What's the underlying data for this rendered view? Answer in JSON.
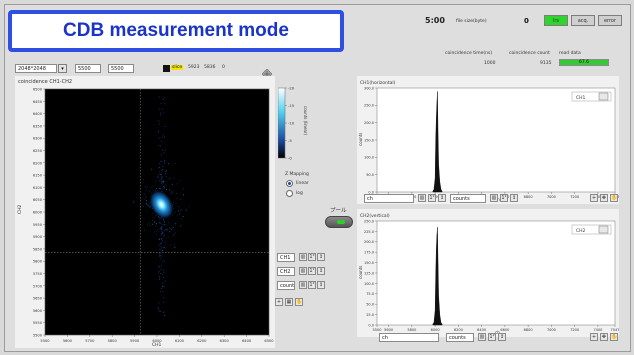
{
  "banner": {
    "title": "CDB measurement mode"
  },
  "top_status": {
    "timer": "5:00",
    "file_size_label": "file size(byte)",
    "file_size_value": "0",
    "indicators": [
      {
        "label": "lrs",
        "color": "#2ed32e"
      },
      {
        "label": "acq.",
        "color": "#cfcfcf"
      },
      {
        "label": "error",
        "color": "#cfcfcf"
      }
    ]
  },
  "settings": {
    "resolution": "2048*2048",
    "range_from": "5500",
    "range_to": "5500",
    "slice_label": "slice",
    "slice_from": "5923",
    "slice_to": "5836",
    "slice_extra": "0"
  },
  "counters": {
    "coincidence_time_label": "coincidence time(ns)",
    "coincidence_time_value": "1000",
    "coincidence_count_label": "coincidence count",
    "coincidence_count_value": "9135",
    "read_data_label": "read data",
    "read_data_value": "67.6"
  },
  "map_panel": {
    "title": "coincidence CH1-CH2",
    "xlabel": "CH1",
    "ylabel": "CH2",
    "y_ticks": [
      "6500",
      "6450",
      "6400",
      "6350",
      "6300",
      "6250",
      "6200",
      "6150",
      "6100",
      "6050",
      "6000",
      "5950",
      "5900",
      "5850",
      "5800",
      "5750",
      "5700",
      "5650",
      "5600",
      "5550",
      "5500"
    ],
    "x_ticks": [
      "5500",
      "5600",
      "5700",
      "5800",
      "5900",
      "6000",
      "6100",
      "6200",
      "6300",
      "6400",
      "6500"
    ],
    "colorbar_ticks": [
      "20",
      "15",
      "10",
      "5",
      "0"
    ],
    "colorbar_label": "counts (linear)"
  },
  "mapping": {
    "title": "Z Mapping",
    "options": [
      {
        "label": "linear",
        "selected": true
      },
      {
        "label": "log",
        "selected": false
      }
    ],
    "pool_label": "プール"
  },
  "axis_controls": [
    {
      "label": "CH1"
    },
    {
      "label": "CH2"
    },
    {
      "label": "counts"
    }
  ],
  "hist_top": {
    "title": "CH1(horizontal)",
    "legend": "CH1",
    "ylabel": "counts",
    "xlabel": "ch",
    "y_ticks": [
      "300.0",
      "250.0",
      "200.0",
      "150.0",
      "100.0",
      "50.0",
      "0.0"
    ],
    "x_ticks": [
      "5500",
      "5600",
      "5800",
      "6000",
      "6200",
      "6400",
      "6600",
      "6800",
      "7000",
      "7200",
      "7400",
      "7547"
    ],
    "footer_x": "ch",
    "footer_y": "counts"
  },
  "hist_bottom": {
    "title": "CH2(vertical)",
    "legend": "CH2",
    "ylabel": "counts",
    "xlabel": "ch",
    "y_ticks": [
      "250.0",
      "225.0",
      "200.0",
      "175.0",
      "150.0",
      "125.0",
      "100.0",
      "75.0",
      "50.0",
      "25.0",
      "0.0"
    ],
    "x_ticks": [
      "5500",
      "5600",
      "5800",
      "6000",
      "6200",
      "6400",
      "6600",
      "6800",
      "7000",
      "7200",
      "7400",
      "7547"
    ],
    "footer_x": "ch",
    "footer_y": "counts"
  },
  "chart_data": [
    {
      "type": "heatmap",
      "title": "coincidence CH1-CH2",
      "xlabel": "CH1",
      "ylabel": "CH2",
      "xlim": [
        5500,
        6500
      ],
      "ylim": [
        5500,
        6500
      ],
      "zlim": [
        0,
        20
      ],
      "peak": {
        "x": 6020,
        "y": 6030
      },
      "cursor": {
        "x": 5925,
        "y": 5835
      }
    },
    {
      "type": "line",
      "title": "CH1(horizontal)",
      "xlabel": "ch",
      "ylabel": "counts",
      "xlim": [
        5500,
        7547
      ],
      "ylim": [
        0,
        300
      ],
      "x": [
        5980,
        5990,
        6000,
        6005,
        6010,
        6015,
        6020,
        6025,
        6030,
        6040,
        6050,
        6060
      ],
      "y": [
        2,
        8,
        40,
        150,
        210,
        255,
        290,
        170,
        80,
        30,
        8,
        2
      ]
    },
    {
      "type": "line",
      "title": "CH2(vertical)",
      "xlabel": "ch",
      "ylabel": "counts",
      "xlim": [
        5500,
        7547
      ],
      "ylim": [
        0,
        250
      ],
      "x": [
        5980,
        5990,
        6000,
        6005,
        6010,
        6015,
        6020,
        6025,
        6030,
        6040,
        6050,
        6060
      ],
      "y": [
        2,
        6,
        35,
        120,
        180,
        215,
        235,
        150,
        70,
        25,
        6,
        2
      ]
    }
  ]
}
